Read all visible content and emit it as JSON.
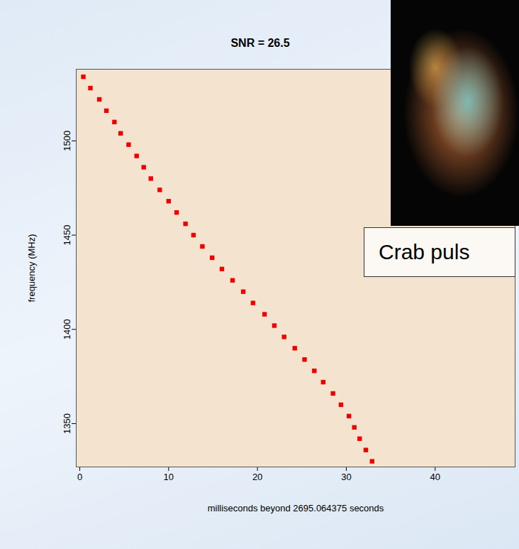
{
  "chart_data": {
    "type": "scatter",
    "title": "SNR = 26.5",
    "x_label": "milliseconds beyond 2695.064375 seconds",
    "y_label": "frequency (MHz)",
    "annotations": [
      "Crab puls"
    ],
    "x": [
      0.4,
      1.2,
      2.2,
      3.0,
      3.9,
      4.6,
      5.5,
      6.4,
      7.2,
      8.0,
      9.0,
      10.0,
      10.9,
      11.9,
      12.8,
      13.8,
      14.9,
      16.0,
      17.2,
      18.4,
      19.5,
      20.8,
      21.9,
      23.0,
      24.2,
      25.3,
      26.4,
      27.4,
      28.5,
      29.4,
      30.3,
      30.9,
      31.5,
      32.2,
      32.9
    ],
    "y": [
      1534,
      1528,
      1522,
      1516,
      1510,
      1504,
      1498,
      1492,
      1486,
      1480,
      1474,
      1468,
      1462,
      1456,
      1450,
      1444,
      1438,
      1432,
      1426,
      1420,
      1414,
      1408,
      1402,
      1396,
      1390,
      1384,
      1378,
      1372,
      1366,
      1360,
      1354,
      1348,
      1342,
      1336,
      1330
    ],
    "color": "#ee0000",
    "marker": "square",
    "xlim": [
      -0.4,
      49
    ],
    "ylim": [
      1327,
      1538
    ],
    "xticks": [
      0,
      10,
      20,
      30,
      40
    ],
    "yticks": [
      1350,
      1400,
      1450,
      1500
    ]
  }
}
